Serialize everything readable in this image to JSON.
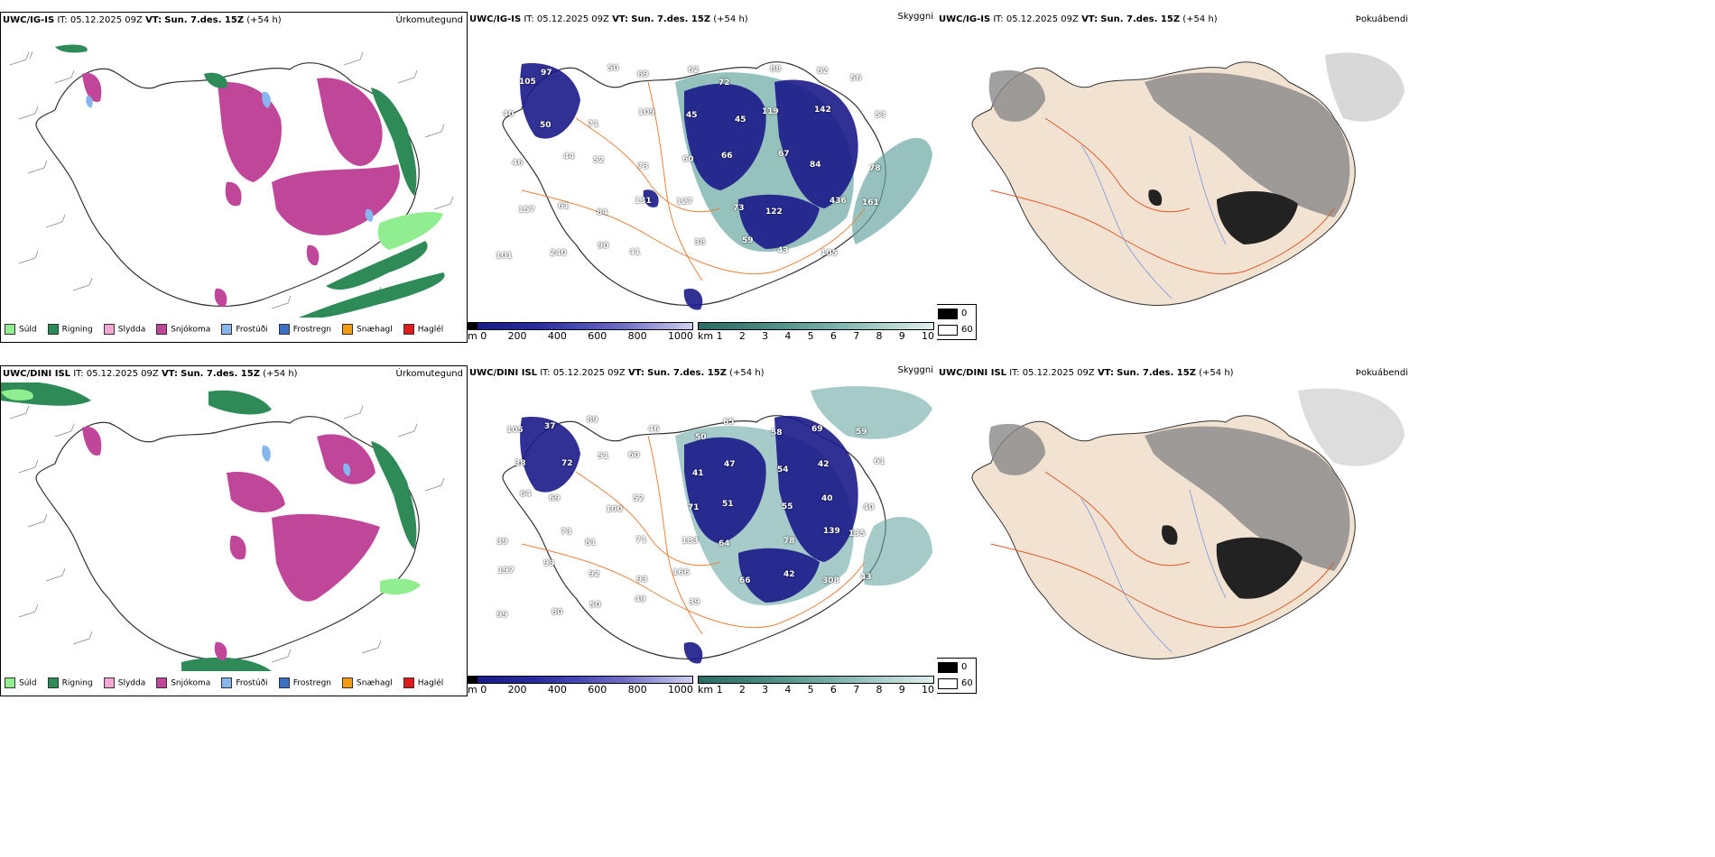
{
  "rows": [
    {
      "model": "UWC/IG-IS",
      "it_label": "IT:",
      "it_value": "05.12.2025 09Z",
      "vt_label": "VT:",
      "vt_value": "Sun. 7.des. 15Z",
      "lead": "(+54 h)"
    },
    {
      "model": "UWC/DINI ISL",
      "it_label": "IT:",
      "it_value": "05.12.2025 09Z",
      "vt_label": "VT:",
      "vt_value": "Sun. 7.des. 15Z",
      "lead": "(+54 h)"
    }
  ],
  "fields": {
    "precip": "Úrkomutegund",
    "visibility": "Skyggni",
    "fog": "Þokuábendi"
  },
  "precip_legend": [
    {
      "label": "Súld",
      "color": "#90ee90"
    },
    {
      "label": "Rigning",
      "color": "#2e8b57"
    },
    {
      "label": "Slydda",
      "color": "#f4a7d3"
    },
    {
      "label": "Snjókoma",
      "color": "#c0469a"
    },
    {
      "label": "Frostúði",
      "color": "#87b5ee"
    },
    {
      "label": "Frostregn",
      "color": "#3a6fc4"
    },
    {
      "label": "Snæhagl",
      "color": "#f39c12"
    },
    {
      "label": "Haglél",
      "color": "#e31a1c"
    }
  ],
  "height_scale": {
    "unit": "m",
    "ticks": [
      "0",
      "200",
      "400",
      "600",
      "800",
      "1000"
    ]
  },
  "visibility_scale": {
    "unit": "km",
    "ticks": [
      "1",
      "2",
      "3",
      "4",
      "5",
      "6",
      "7",
      "8",
      "9",
      "10"
    ]
  },
  "fog_scale": {
    "ticks": [
      "0",
      "60"
    ]
  },
  "top_visibility_labels": [
    "105",
    "97",
    "50",
    "69",
    "62",
    "72",
    "88",
    "82",
    "56",
    "40",
    "50",
    "71",
    "109",
    "45",
    "45",
    "119",
    "142",
    "53",
    "46",
    "44",
    "52",
    "73",
    "60",
    "66",
    "67",
    "84",
    "78",
    "157",
    "61",
    "84",
    "131",
    "127",
    "73",
    "122",
    "436",
    "161",
    "101",
    "240",
    "90",
    "41",
    "38",
    "59",
    "43",
    "105"
  ],
  "bottom_visibility_labels": [
    "105",
    "37",
    "89",
    "46",
    "50",
    "65",
    "58",
    "69",
    "59",
    "38",
    "72",
    "51",
    "60",
    "41",
    "47",
    "54",
    "42",
    "61",
    "64",
    "69",
    "100",
    "52",
    "71",
    "51",
    "55",
    "40",
    "40",
    "39",
    "73",
    "81",
    "71",
    "183",
    "64",
    "78",
    "139",
    "135",
    "197",
    "93",
    "92",
    "93",
    "166",
    "66",
    "42",
    "308",
    "43",
    "99",
    "80",
    "50",
    "49",
    "39"
  ],
  "colors": {
    "snow": "#c0469a",
    "rain": "#2e8b57",
    "drizzle": "#90ee90",
    "roads": "#e8823c",
    "lowvis": "#1a1a8a"
  }
}
